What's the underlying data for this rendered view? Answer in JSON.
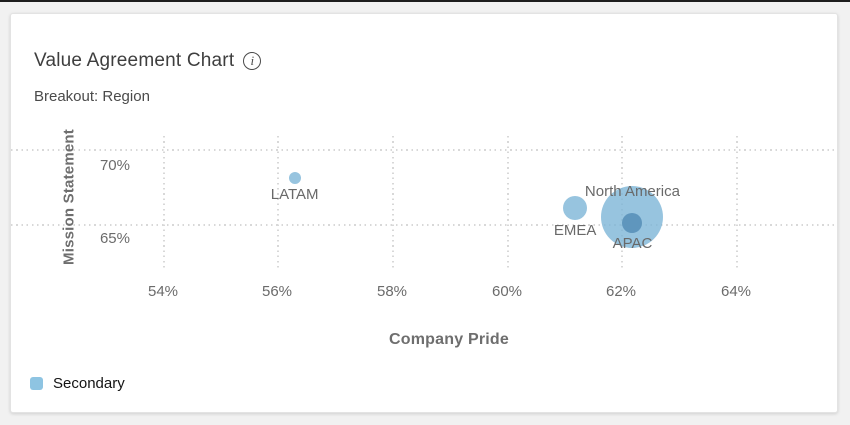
{
  "page": {
    "background_color": "#f1f1f1",
    "top_bar_color": "#1d1d1d"
  },
  "card": {
    "title": "Value Agreement Chart",
    "breakout": "Breakout: Region"
  },
  "icons": {
    "info": "i"
  },
  "chart_data": {
    "type": "scatter",
    "title": "Value Agreement Chart",
    "breakout_dimension": "Region",
    "xlabel": "Company Pride",
    "ylabel": "Mission Statement",
    "x_ticks": [
      "54%",
      "56%",
      "58%",
      "60%",
      "62%",
      "64%"
    ],
    "x_tick_values": [
      54,
      56,
      58,
      60,
      62,
      64
    ],
    "y_ticks": [
      "70%",
      "65%"
    ],
    "y_tick_values": [
      70,
      65
    ],
    "xlim": [
      53.3,
      65.8
    ],
    "ylim": [
      63.9,
      70.9
    ],
    "grid": "dotted",
    "points": [
      {
        "label": "North America",
        "x": 62.2,
        "y": 65.5,
        "radius": 31,
        "color_key": "light",
        "label_position": "above"
      },
      {
        "label": "EMEA",
        "x": 61.2,
        "y": 66.1,
        "radius": 12,
        "color_key": "light",
        "label_position": "below"
      },
      {
        "label": "LATAM",
        "x": 56.3,
        "y": 68.1,
        "radius": 6,
        "color_key": "light",
        "label_position": "below"
      },
      {
        "label": "APAC",
        "x": 62.2,
        "y": 65.1,
        "radius": 10,
        "color_key": "dark",
        "label_position": "below"
      }
    ],
    "colors": {
      "light": "rgba(122,179,214,0.78)",
      "dark": "#5f96bd"
    },
    "legend": [
      {
        "label": "Secondary",
        "color": "#8ec4e2"
      }
    ],
    "legend_position": "bottom-left"
  }
}
